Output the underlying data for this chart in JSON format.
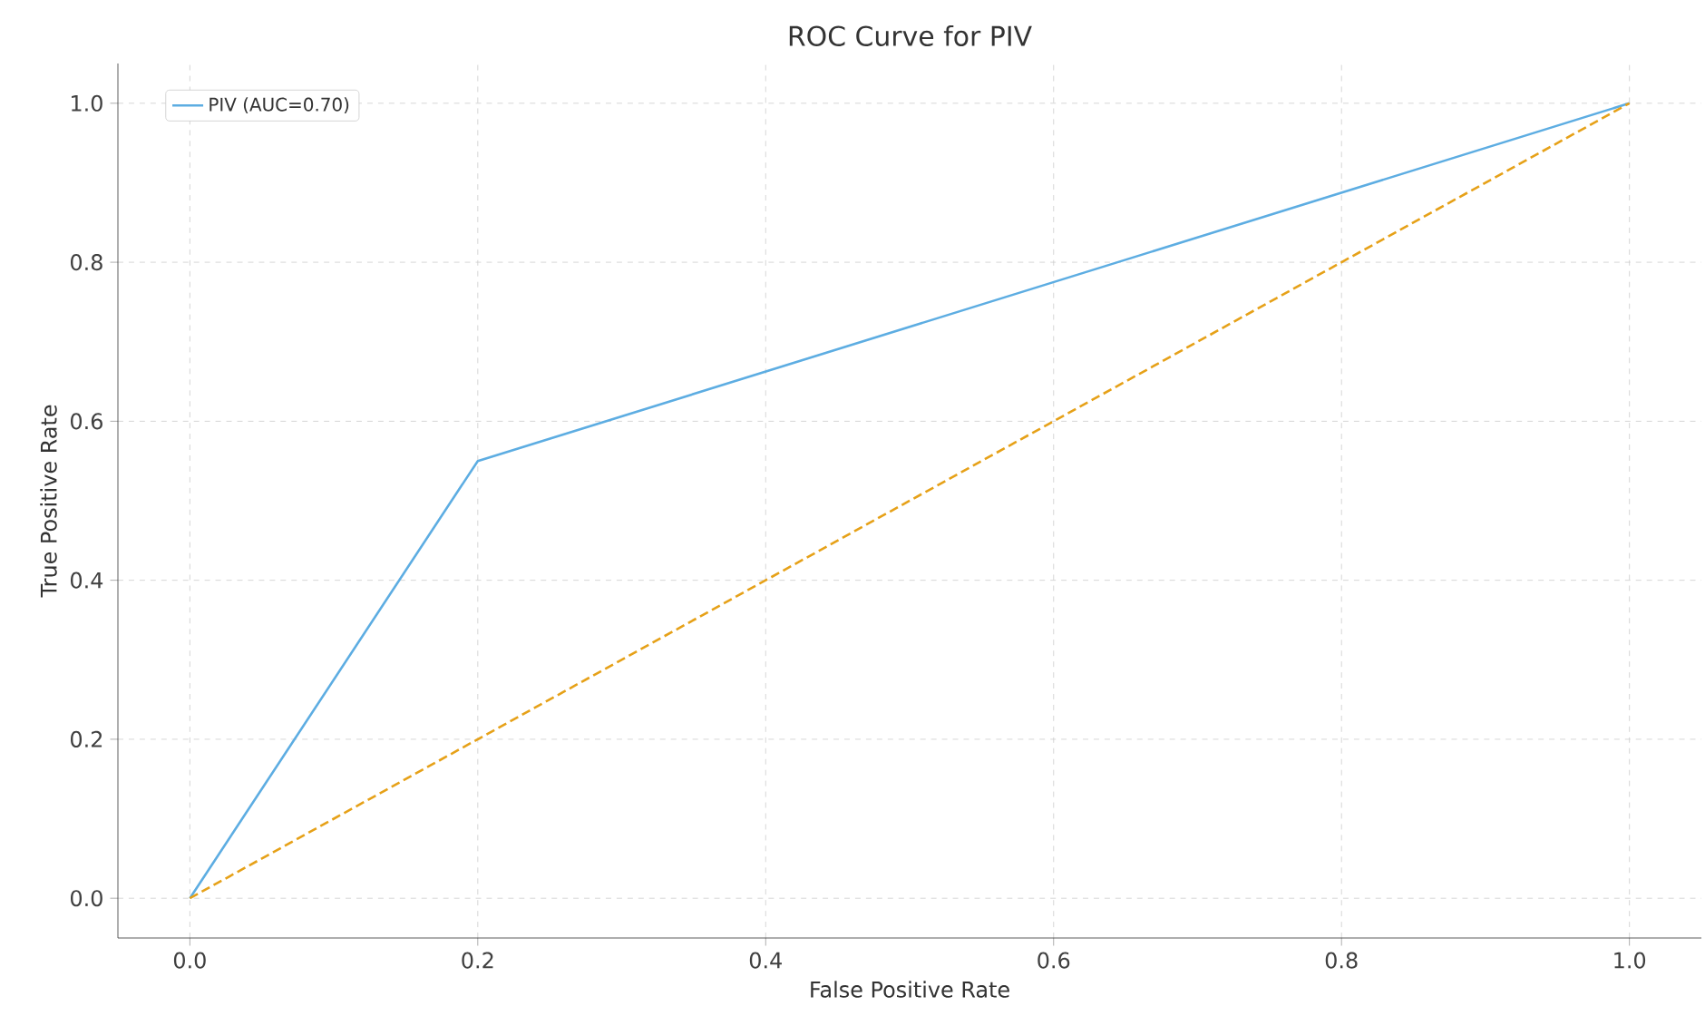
{
  "chart_data": {
    "type": "line",
    "title": "ROC Curve for PIV",
    "xlabel": "False Positive Rate",
    "ylabel": "True Positive Rate",
    "xlim": [
      -0.05,
      1.05
    ],
    "ylim": [
      -0.05,
      1.05
    ],
    "xticks": [
      {
        "value": 0,
        "label": "0.0"
      },
      {
        "value": 0.2,
        "label": "0.2"
      },
      {
        "value": 0.4,
        "label": "0.4"
      },
      {
        "value": 0.6,
        "label": "0.6"
      },
      {
        "value": 0.8,
        "label": "0.8"
      },
      {
        "value": 1,
        "label": "1.0"
      }
    ],
    "yticks": [
      {
        "value": 0,
        "label": "0.0"
      },
      {
        "value": 0.2,
        "label": "0.2"
      },
      {
        "value": 0.4,
        "label": "0.4"
      },
      {
        "value": 0.6,
        "label": "0.6"
      },
      {
        "value": 0.8,
        "label": "0.8"
      },
      {
        "value": 1,
        "label": "1.0"
      }
    ],
    "grid": true,
    "legend": "top left",
    "marker": "none",
    "series": [
      {
        "name": "PIV (AUC=0.70)",
        "color": "#5dade2",
        "x": [
          0,
          0.2,
          1
        ],
        "values": [
          0,
          0.55,
          1
        ],
        "line_style": "solid"
      },
      {
        "color": "#e6a118",
        "x": [
          0,
          1
        ],
        "values": [
          0,
          1
        ],
        "line_style": "dashed"
      }
    ]
  }
}
